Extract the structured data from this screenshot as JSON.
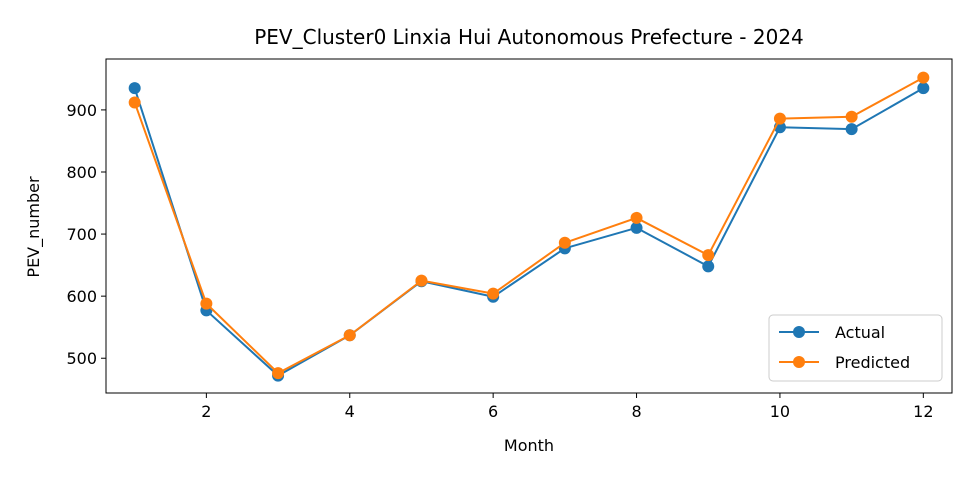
{
  "chart_data": {
    "type": "line",
    "title": "PEV_Cluster0 Linxia Hui Autonomous Prefecture - 2024",
    "xlabel": "Month",
    "ylabel": "PEV_number",
    "x": [
      1,
      2,
      3,
      4,
      5,
      6,
      7,
      8,
      9,
      10,
      11,
      12
    ],
    "xlim": [
      0.6,
      12.4
    ],
    "ylim": [
      444,
      982
    ],
    "xticks": [
      2,
      4,
      6,
      8,
      10,
      12
    ],
    "yticks": [
      500,
      600,
      700,
      800,
      900
    ],
    "grid": false,
    "legend_position": "bottom-right",
    "series": [
      {
        "name": "Actual",
        "color": "#1f77b4",
        "values": [
          935,
          577,
          472,
          537,
          624,
          599,
          677,
          710,
          648,
          872,
          869,
          935
        ]
      },
      {
        "name": "Predicted",
        "color": "#ff7f0e",
        "values": [
          912,
          588,
          476,
          537,
          625,
          604,
          686,
          726,
          666,
          886,
          889,
          952
        ]
      }
    ]
  }
}
